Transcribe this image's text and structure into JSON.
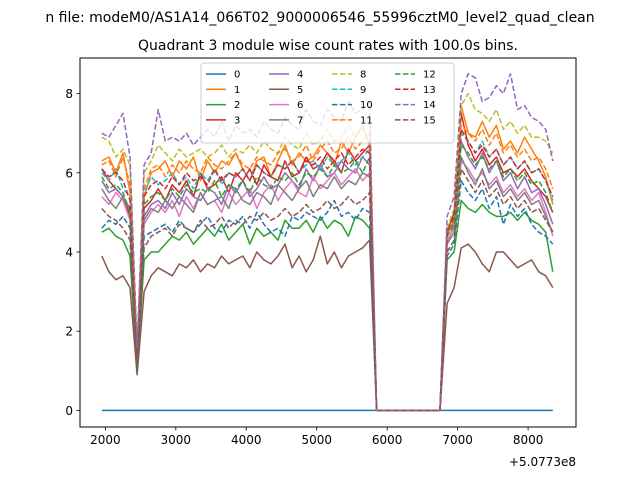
{
  "chart_data": {
    "type": "line",
    "suptitle": "n file: modeM0/AS1A14_066T02_9000006546_55996cztM0_level2_quad_clean",
    "title": "Quadrant 3 module wise count rates with 100.0s bins.",
    "xlabel": "",
    "ylabel": "",
    "x_offset_label": "+5.0773e8",
    "xlim": [
      1640,
      8680
    ],
    "ylim": [
      -0.42,
      8.9
    ],
    "xticks": [
      2000,
      3000,
      4000,
      5000,
      6000,
      7000,
      8000
    ],
    "yticks": [
      0,
      2,
      4,
      6,
      8
    ],
    "grid": false,
    "legend_position": "top-center",
    "x": [
      1950,
      2050,
      2150,
      2250,
      2350,
      2450,
      2550,
      2650,
      2750,
      2850,
      2950,
      3050,
      3150,
      3250,
      3350,
      3450,
      3550,
      3650,
      3750,
      3850,
      3950,
      4050,
      4150,
      4250,
      4350,
      4450,
      4550,
      4650,
      4750,
      4850,
      4950,
      5050,
      5150,
      5250,
      5350,
      5450,
      5550,
      5650,
      5750,
      5850,
      5950,
      6050,
      6150,
      6250,
      6350,
      6450,
      6550,
      6650,
      6750,
      6850,
      6950,
      7050,
      7150,
      7250,
      7350,
      7450,
      7550,
      7650,
      7750,
      7850,
      7950,
      8050,
      8150,
      8250,
      8350
    ],
    "series": [
      {
        "name": "0",
        "style": "solid",
        "color": "#1f77b4",
        "values": [
          0.0,
          0.0,
          0.0,
          0.0,
          0.0,
          0.0,
          0.0,
          0.0,
          0.0,
          0.0,
          0.0,
          0.0,
          0.0,
          0.0,
          0.0,
          0.0,
          0.0,
          0.0,
          0.0,
          0.0,
          0.0,
          0.0,
          0.0,
          0.0,
          0.0,
          0.0,
          0.0,
          0.0,
          0.0,
          0.0,
          0.0,
          0.0,
          0.0,
          0.0,
          0.0,
          0.0,
          0.0,
          0.0,
          0.0,
          0.0,
          0.0,
          0.0,
          0.0,
          0.0,
          0.0,
          0.0,
          0.0,
          0.0,
          0.0,
          0.0,
          0.0,
          0.0,
          0.0,
          0.0,
          0.0,
          0.0,
          0.0,
          0.0,
          0.0,
          0.0,
          0.0,
          0.0,
          0.0,
          0.0,
          0.0
        ]
      },
      {
        "name": "1",
        "style": "solid",
        "color": "#ff7f0e",
        "values": [
          6.3,
          6.4,
          6.0,
          6.5,
          5.5,
          1.4,
          5.4,
          6.0,
          6.1,
          6.3,
          5.9,
          6.3,
          6.1,
          6.4,
          5.8,
          6.3,
          6.0,
          6.3,
          6.2,
          6.5,
          6.1,
          5.8,
          6.3,
          6.4,
          5.9,
          6.3,
          6.7,
          6.2,
          6.5,
          6.3,
          6.4,
          6.7,
          6.5,
          6.2,
          6.8,
          6.5,
          6.9,
          7.2,
          6.7,
          0.0,
          0.0,
          0.0,
          0.0,
          0.0,
          0.0,
          0.0,
          0.0,
          0.0,
          0.0,
          4.2,
          4.7,
          7.7,
          7.0,
          6.9,
          7.3,
          6.9,
          7.2,
          6.6,
          6.8,
          6.5,
          6.9,
          6.6,
          6.3,
          5.9,
          5.2
        ]
      },
      {
        "name": "2",
        "style": "solid",
        "color": "#2ca02c",
        "values": [
          4.5,
          4.6,
          4.4,
          4.3,
          3.9,
          1.0,
          3.8,
          4.0,
          4.0,
          4.2,
          4.4,
          4.3,
          4.5,
          4.2,
          4.4,
          4.6,
          4.4,
          4.7,
          4.3,
          4.5,
          4.7,
          4.2,
          4.6,
          4.4,
          4.5,
          4.3,
          4.8,
          4.6,
          4.6,
          4.8,
          4.5,
          4.9,
          4.6,
          4.8,
          4.7,
          4.4,
          4.9,
          4.8,
          4.6,
          0.0,
          0.0,
          0.0,
          0.0,
          0.0,
          0.0,
          0.0,
          0.0,
          0.0,
          0.0,
          3.8,
          4.0,
          5.3,
          5.1,
          5.0,
          5.2,
          5.0,
          4.9,
          4.9,
          5.0,
          4.8,
          5.0,
          4.8,
          4.7,
          4.5,
          3.5
        ]
      },
      {
        "name": "3",
        "style": "solid",
        "color": "#d62728",
        "values": [
          6.1,
          5.8,
          5.6,
          5.4,
          4.9,
          1.3,
          5.1,
          5.3,
          5.6,
          5.3,
          5.7,
          5.5,
          5.8,
          5.4,
          6.0,
          5.6,
          5.7,
          5.9,
          5.5,
          6.0,
          5.8,
          6.1,
          5.7,
          6.2,
          5.9,
          5.8,
          6.3,
          5.9,
          6.0,
          6.4,
          6.1,
          6.2,
          6.5,
          6.3,
          6.0,
          6.6,
          6.3,
          6.5,
          6.7,
          0.0,
          0.0,
          0.0,
          0.0,
          0.0,
          0.0,
          0.0,
          0.0,
          0.0,
          0.0,
          4.5,
          5.0,
          7.5,
          6.7,
          6.3,
          6.6,
          6.2,
          6.4,
          6.0,
          6.1,
          5.9,
          6.1,
          5.8,
          5.6,
          5.4,
          5.0
        ]
      },
      {
        "name": "4",
        "style": "solid",
        "color": "#9467bd",
        "values": [
          5.8,
          5.5,
          5.6,
          5.4,
          5.1,
          1.2,
          4.9,
          5.2,
          5.3,
          5.1,
          5.5,
          5.2,
          5.6,
          5.4,
          5.3,
          5.6,
          5.5,
          5.2,
          5.7,
          5.5,
          5.8,
          5.4,
          5.6,
          5.9,
          5.6,
          5.7,
          6.0,
          5.8,
          5.6,
          6.1,
          5.8,
          6.2,
          5.9,
          6.0,
          6.3,
          6.1,
          6.0,
          6.4,
          6.2,
          0.0,
          0.0,
          0.0,
          0.0,
          0.0,
          0.0,
          0.0,
          0.0,
          0.0,
          0.0,
          4.4,
          4.8,
          6.8,
          6.4,
          6.1,
          6.5,
          6.0,
          6.3,
          5.8,
          6.0,
          5.6,
          5.9,
          5.5,
          5.6,
          5.2,
          4.7
        ]
      },
      {
        "name": "5",
        "style": "solid",
        "color": "#8c564b",
        "values": [
          3.9,
          3.5,
          3.3,
          3.4,
          3.1,
          0.9,
          3.0,
          3.4,
          3.6,
          3.5,
          3.4,
          3.7,
          3.6,
          3.8,
          3.5,
          3.7,
          3.6,
          3.9,
          3.7,
          3.8,
          3.9,
          3.6,
          4.0,
          3.8,
          3.7,
          3.9,
          4.2,
          3.6,
          3.9,
          3.5,
          3.8,
          4.4,
          3.7,
          4.0,
          3.6,
          3.9,
          4.0,
          4.1,
          4.3,
          0.0,
          0.0,
          0.0,
          0.0,
          0.0,
          0.0,
          0.0,
          0.0,
          0.0,
          0.0,
          2.7,
          3.1,
          4.1,
          4.2,
          4.0,
          3.7,
          3.5,
          4.0,
          4.0,
          3.8,
          3.6,
          3.7,
          3.8,
          3.5,
          3.4,
          3.1
        ]
      },
      {
        "name": "6",
        "style": "solid",
        "color": "#e377c2",
        "values": [
          5.4,
          5.2,
          5.5,
          5.3,
          4.8,
          1.1,
          4.7,
          5.0,
          5.2,
          5.0,
          5.3,
          4.9,
          5.4,
          5.1,
          5.5,
          5.2,
          5.3,
          5.0,
          5.5,
          5.2,
          5.4,
          5.6,
          5.1,
          5.5,
          5.7,
          5.3,
          5.6,
          5.8,
          5.5,
          5.4,
          5.9,
          5.6,
          5.8,
          6.0,
          5.7,
          5.9,
          6.1,
          5.8,
          6.0,
          0.0,
          0.0,
          0.0,
          0.0,
          0.0,
          0.0,
          0.0,
          0.0,
          0.0,
          0.0,
          4.3,
          4.6,
          6.3,
          6.1,
          5.8,
          6.0,
          5.7,
          5.9,
          5.5,
          5.7,
          5.4,
          5.6,
          5.3,
          5.5,
          5.0,
          4.4
        ]
      },
      {
        "name": "7",
        "style": "solid",
        "color": "#7f7f7f",
        "values": [
          5.6,
          5.3,
          5.1,
          5.4,
          5.0,
          1.1,
          4.8,
          5.1,
          5.0,
          5.3,
          5.1,
          5.4,
          5.2,
          5.0,
          5.5,
          5.2,
          5.3,
          5.4,
          5.1,
          5.6,
          5.3,
          5.2,
          5.5,
          5.4,
          5.2,
          5.7,
          5.5,
          5.3,
          5.6,
          5.8,
          5.4,
          5.7,
          5.6,
          5.9,
          5.6,
          5.8,
          5.7,
          6.0,
          5.9,
          0.0,
          0.0,
          0.0,
          0.0,
          0.0,
          0.0,
          0.0,
          0.0,
          0.0,
          0.0,
          4.2,
          4.5,
          6.4,
          6.0,
          5.7,
          6.1,
          5.6,
          5.8,
          5.4,
          5.6,
          5.3,
          5.5,
          5.2,
          5.3,
          4.9,
          4.5
        ]
      },
      {
        "name": "8",
        "style": "dashed",
        "color": "#bcbd22",
        "values": [
          6.9,
          6.8,
          6.4,
          6.6,
          6.2,
          1.5,
          6.0,
          6.3,
          6.7,
          6.5,
          6.3,
          6.6,
          6.4,
          6.5,
          6.6,
          6.4,
          6.5,
          6.7,
          6.4,
          6.6,
          6.5,
          6.7,
          6.5,
          6.8,
          6.6,
          6.5,
          6.9,
          6.7,
          6.6,
          7.0,
          6.7,
          6.8,
          7.1,
          6.8,
          6.9,
          7.2,
          6.9,
          7.1,
          7.5,
          0.0,
          0.0,
          0.0,
          0.0,
          0.0,
          0.0,
          0.0,
          0.0,
          0.0,
          0.0,
          4.6,
          5.1,
          7.7,
          8.0,
          7.6,
          7.5,
          7.3,
          7.6,
          7.1,
          7.3,
          7.0,
          7.2,
          6.9,
          6.9,
          6.8,
          6.5
        ]
      },
      {
        "name": "9",
        "style": "dashed",
        "color": "#17becf",
        "values": [
          6.0,
          5.8,
          6.1,
          5.6,
          5.4,
          1.3,
          5.5,
          5.9,
          5.7,
          5.8,
          6.0,
          5.7,
          5.9,
          5.6,
          6.0,
          5.8,
          6.1,
          5.7,
          6.0,
          5.9,
          6.1,
          5.8,
          6.2,
          6.0,
          5.9,
          6.2,
          6.1,
          6.3,
          6.0,
          6.2,
          6.3,
          6.1,
          6.4,
          6.2,
          6.3,
          6.5,
          6.2,
          6.4,
          6.6,
          0.0,
          0.0,
          0.0,
          0.0,
          0.0,
          0.0,
          0.0,
          0.0,
          0.0,
          0.0,
          4.5,
          4.9,
          7.0,
          6.8,
          6.5,
          6.8,
          6.4,
          6.6,
          6.2,
          6.4,
          6.1,
          6.3,
          6.0,
          6.1,
          5.8,
          5.3
        ]
      },
      {
        "name": "10",
        "style": "dashed",
        "color": "#1f77b4",
        "values": [
          4.6,
          4.8,
          4.7,
          4.9,
          4.6,
          1.0,
          4.4,
          4.5,
          4.6,
          4.7,
          4.5,
          4.8,
          4.6,
          4.5,
          4.7,
          4.9,
          4.6,
          4.5,
          4.8,
          4.7,
          4.9,
          4.6,
          5.0,
          4.7,
          4.5,
          4.6,
          4.4,
          4.9,
          4.8,
          5.0,
          4.9,
          4.8,
          5.0,
          5.3,
          4.9,
          5.0,
          4.8,
          5.1,
          5.0,
          0.0,
          0.0,
          0.0,
          0.0,
          0.0,
          0.0,
          0.0,
          0.0,
          0.0,
          0.0,
          3.9,
          4.2,
          5.8,
          5.5,
          5.3,
          5.6,
          5.1,
          5.4,
          4.7,
          5.2,
          4.9,
          5.1,
          4.7,
          4.5,
          4.4,
          4.2
        ]
      },
      {
        "name": "11",
        "style": "dashed",
        "color": "#ff7f0e",
        "values": [
          6.2,
          6.3,
          5.9,
          6.4,
          5.7,
          1.4,
          5.6,
          6.1,
          6.2,
          5.9,
          6.2,
          6.0,
          6.3,
          6.1,
          6.0,
          6.4,
          6.2,
          6.1,
          6.3,
          6.5,
          6.2,
          6.1,
          6.4,
          6.3,
          6.2,
          6.5,
          6.6,
          6.3,
          6.4,
          6.7,
          6.3,
          6.6,
          6.8,
          6.5,
          6.6,
          6.9,
          6.6,
          6.8,
          7.0,
          0.0,
          0.0,
          0.0,
          0.0,
          0.0,
          0.0,
          0.0,
          0.0,
          0.0,
          0.0,
          4.4,
          4.8,
          7.2,
          7.0,
          6.8,
          7.1,
          6.7,
          7.0,
          6.5,
          6.7,
          6.4,
          6.6,
          6.3,
          6.4,
          6.1,
          5.6
        ]
      },
      {
        "name": "12",
        "style": "dashed",
        "color": "#2ca02c",
        "values": [
          5.9,
          5.6,
          5.7,
          5.5,
          5.0,
          1.2,
          5.2,
          5.4,
          5.5,
          5.3,
          5.6,
          5.4,
          5.7,
          5.5,
          5.6,
          5.5,
          5.8,
          5.4,
          5.7,
          5.6,
          5.8,
          5.5,
          5.9,
          5.7,
          5.6,
          5.9,
          5.8,
          6.0,
          5.7,
          6.0,
          5.9,
          6.1,
          5.9,
          6.2,
          6.0,
          6.1,
          6.3,
          6.0,
          6.4,
          0.0,
          0.0,
          0.0,
          0.0,
          0.0,
          0.0,
          0.0,
          0.0,
          0.0,
          0.0,
          4.4,
          4.7,
          6.7,
          6.5,
          6.2,
          6.4,
          6.1,
          6.3,
          5.9,
          6.1,
          5.8,
          6.0,
          5.7,
          5.8,
          5.5,
          5.0
        ]
      },
      {
        "name": "13",
        "style": "dashed",
        "color": "#d62728",
        "values": [
          6.1,
          5.9,
          6.0,
          5.8,
          5.3,
          1.3,
          5.4,
          5.7,
          5.8,
          5.6,
          5.9,
          5.7,
          6.0,
          5.8,
          5.9,
          5.7,
          6.1,
          5.8,
          6.0,
          5.9,
          6.1,
          5.8,
          6.2,
          6.0,
          5.9,
          6.2,
          6.1,
          6.3,
          6.0,
          6.3,
          6.2,
          6.4,
          6.1,
          6.3,
          6.5,
          6.2,
          6.4,
          6.6,
          6.5,
          0.0,
          0.0,
          0.0,
          0.0,
          0.0,
          0.0,
          0.0,
          0.0,
          0.0,
          0.0,
          4.5,
          4.9,
          7.1,
          6.8,
          6.5,
          6.7,
          6.4,
          6.6,
          6.2,
          6.4,
          6.1,
          6.3,
          6.0,
          6.1,
          5.8,
          5.4
        ]
      },
      {
        "name": "14",
        "style": "dashed",
        "color": "#9467bd",
        "values": [
          7.0,
          6.9,
          7.2,
          7.5,
          6.4,
          1.6,
          6.2,
          6.5,
          7.6,
          6.8,
          6.9,
          6.8,
          7.0,
          6.7,
          6.9,
          7.1,
          6.9,
          7.3,
          6.8,
          7.2,
          7.0,
          7.1,
          6.9,
          7.3,
          7.1,
          7.0,
          7.4,
          7.2,
          7.1,
          7.6,
          7.3,
          7.2,
          7.6,
          7.4,
          7.3,
          7.8,
          7.5,
          7.6,
          7.8,
          0.0,
          0.0,
          0.0,
          0.0,
          0.0,
          0.0,
          0.0,
          0.0,
          0.0,
          0.0,
          4.9,
          5.4,
          8.0,
          8.5,
          8.4,
          7.8,
          7.9,
          8.2,
          8.0,
          8.5,
          7.6,
          7.7,
          7.4,
          7.3,
          7.1,
          6.3
        ]
      },
      {
        "name": "15",
        "style": "dashed",
        "color": "#8c564b",
        "values": [
          5.1,
          4.9,
          4.8,
          4.6,
          4.3,
          1.1,
          4.1,
          4.4,
          4.5,
          4.6,
          4.4,
          4.7,
          4.6,
          4.5,
          4.8,
          4.6,
          4.7,
          4.9,
          4.6,
          4.8,
          4.7,
          4.9,
          4.8,
          5.0,
          4.8,
          4.9,
          5.1,
          4.9,
          5.0,
          5.2,
          5.0,
          5.1,
          5.3,
          5.1,
          5.2,
          5.4,
          5.2,
          5.3,
          5.5,
          0.0,
          0.0,
          0.0,
          0.0,
          0.0,
          0.0,
          0.0,
          0.0,
          0.0,
          0.0,
          4.0,
          4.3,
          6.1,
          5.8,
          5.5,
          5.8,
          5.4,
          5.6,
          5.2,
          5.4,
          5.1,
          5.3,
          5.0,
          5.1,
          4.8,
          4.5
        ]
      }
    ]
  }
}
